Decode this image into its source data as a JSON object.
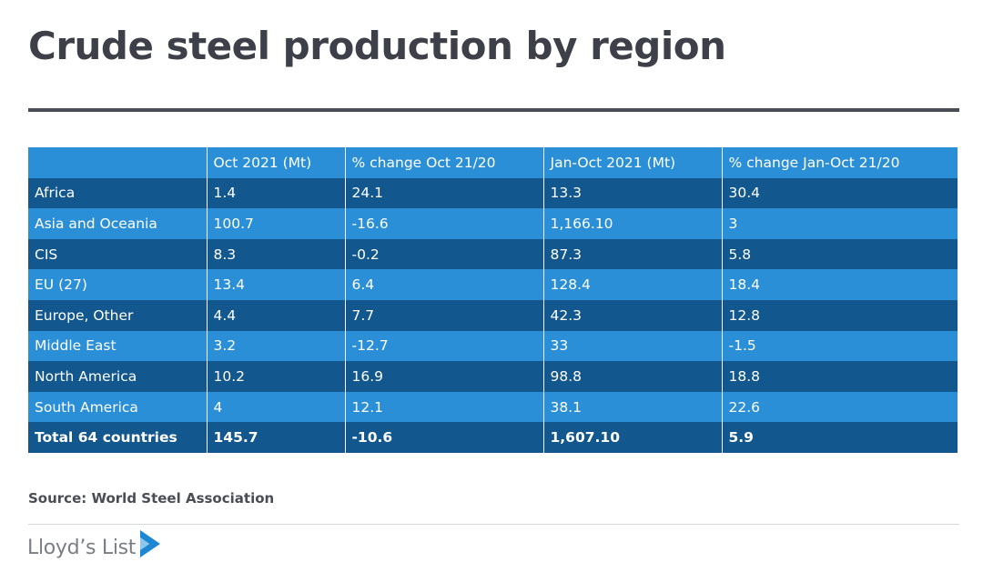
{
  "title": "Crude steel production by region",
  "table": {
    "headers": [
      "",
      "Oct 2021 (Mt)",
      "% change Oct 21/20",
      "Jan-Oct 2021 (Mt)",
      "% change Jan-Oct 21/20"
    ],
    "rows": [
      [
        "Africa",
        "1.4",
        "24.1",
        "13.3",
        "30.4"
      ],
      [
        "Asia and Oceania",
        "100.7",
        "-16.6",
        "1,166.10",
        "3"
      ],
      [
        "CIS",
        "8.3",
        "-0.2",
        "87.3",
        "5.8"
      ],
      [
        "EU (27)",
        "13.4",
        "6.4",
        "128.4",
        "18.4"
      ],
      [
        "Europe, Other",
        "4.4",
        "7.7",
        "42.3",
        "12.8"
      ],
      [
        "Middle East",
        "3.2",
        "-12.7",
        "33",
        "-1.5"
      ],
      [
        "North America",
        "10.2",
        "16.9",
        "98.8",
        "18.8"
      ],
      [
        "South America",
        "4",
        "12.1",
        "38.1",
        "22.6"
      ]
    ],
    "total": [
      "Total 64 countries",
      "145.7",
      "-10.6",
      "1,607.10",
      "5.9"
    ]
  },
  "chart_data": {
    "type": "table",
    "title": "Crude steel production by region",
    "columns": [
      "",
      "Oct 2021 (Mt)",
      "% change Oct 21/20",
      "Jan-Oct 2021 (Mt)",
      "% change Jan-Oct 21/20"
    ],
    "rows": [
      {
        "region": "Africa",
        "oct_2021_mt": 1.4,
        "pct_change_oct": 24.1,
        "jan_oct_2021_mt": 13.3,
        "pct_change_jan_oct": 30.4
      },
      {
        "region": "Asia and Oceania",
        "oct_2021_mt": 100.7,
        "pct_change_oct": -16.6,
        "jan_oct_2021_mt": 1166.1,
        "pct_change_jan_oct": 3
      },
      {
        "region": "CIS",
        "oct_2021_mt": 8.3,
        "pct_change_oct": -0.2,
        "jan_oct_2021_mt": 87.3,
        "pct_change_jan_oct": 5.8
      },
      {
        "region": "EU (27)",
        "oct_2021_mt": 13.4,
        "pct_change_oct": 6.4,
        "jan_oct_2021_mt": 128.4,
        "pct_change_jan_oct": 18.4
      },
      {
        "region": "Europe, Other",
        "oct_2021_mt": 4.4,
        "pct_change_oct": 7.7,
        "jan_oct_2021_mt": 42.3,
        "pct_change_jan_oct": 12.8
      },
      {
        "region": "Middle East",
        "oct_2021_mt": 3.2,
        "pct_change_oct": -12.7,
        "jan_oct_2021_mt": 33,
        "pct_change_jan_oct": -1.5
      },
      {
        "region": "North America",
        "oct_2021_mt": 10.2,
        "pct_change_oct": 16.9,
        "jan_oct_2021_mt": 98.8,
        "pct_change_jan_oct": 18.8
      },
      {
        "region": "South America",
        "oct_2021_mt": 4,
        "pct_change_oct": 12.1,
        "jan_oct_2021_mt": 38.1,
        "pct_change_jan_oct": 22.6
      },
      {
        "region": "Total 64 countries",
        "oct_2021_mt": 145.7,
        "pct_change_oct": -10.6,
        "jan_oct_2021_mt": 1607.1,
        "pct_change_jan_oct": 5.9
      }
    ]
  },
  "source": "Source: World Steel Association",
  "brand": {
    "name": "Lloyd’s List",
    "icon": "play-chevron-icon",
    "colors": {
      "mark": "#1e87d3",
      "text": "#7a7d85"
    }
  },
  "colors": {
    "header_row": "#2a8fd6",
    "dark_row": "#12578d",
    "light_row": "#2a8fd6",
    "title": "#3d4048"
  }
}
